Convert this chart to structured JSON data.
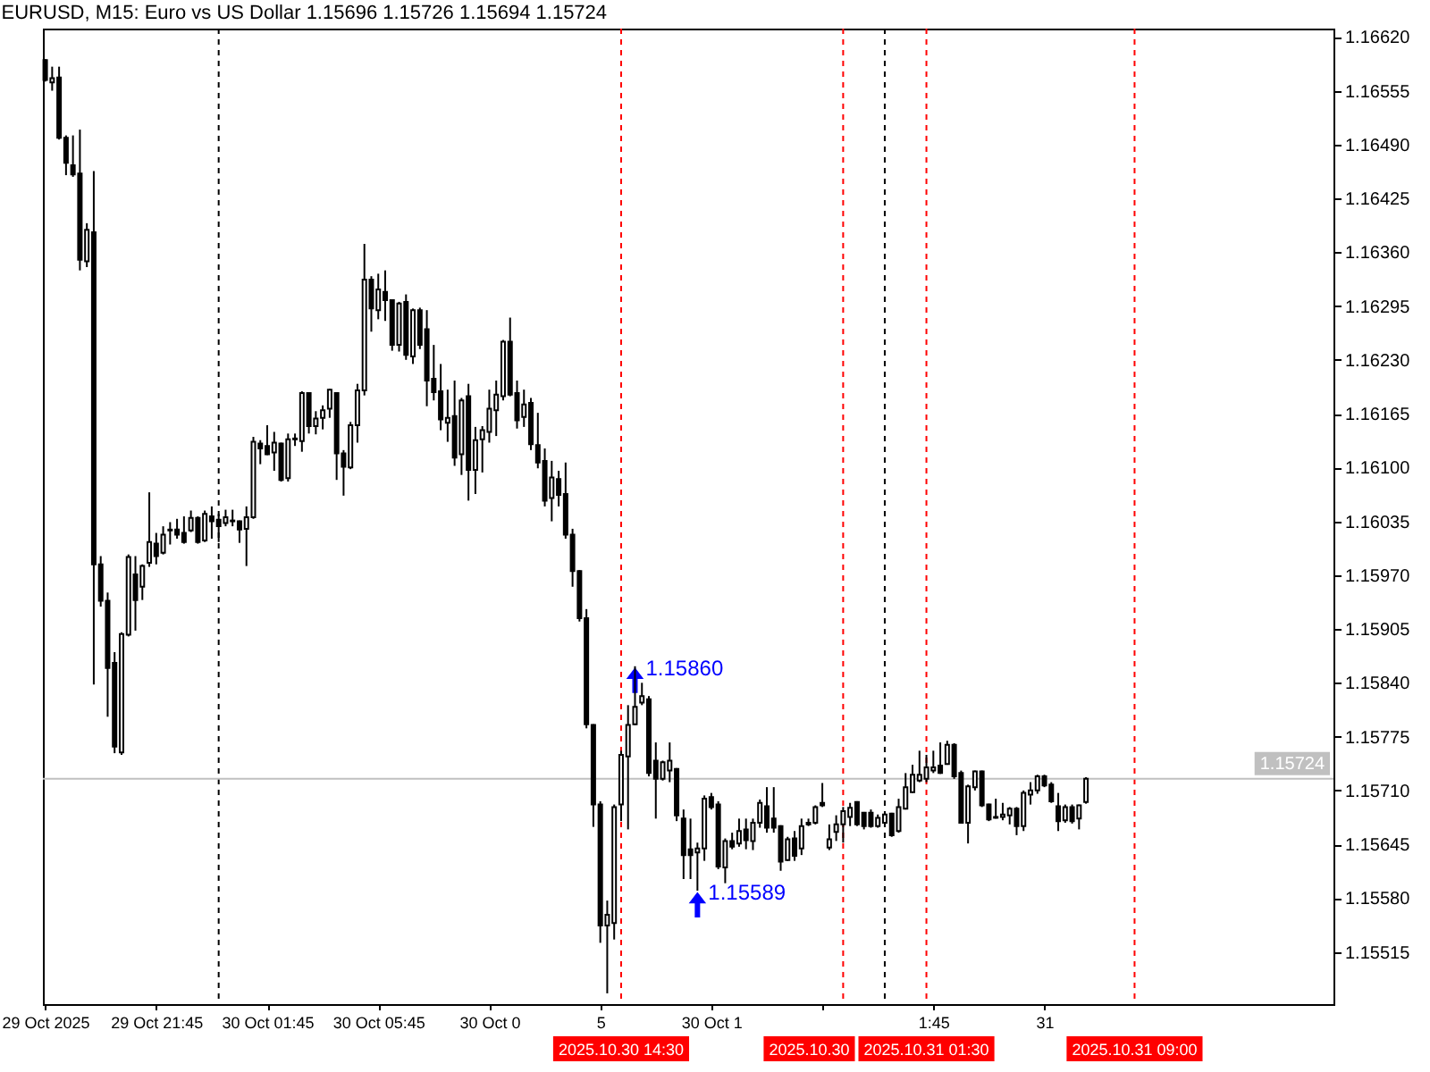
{
  "chart_data": {
    "type": "candlestick",
    "title": "EURUSD, M15:  Euro vs US Dollar  1.15696 1.15726 1.15694 1.15724",
    "color": "#000000",
    "x": [
      "2025-10-29T17:45",
      "2025-10-29T18:00",
      "2025-10-29T18:15",
      "2025-10-29T18:30",
      "2025-10-29T18:45",
      "2025-10-29T19:00",
      "2025-10-29T19:15",
      "2025-10-29T19:30",
      "2025-10-29T19:45",
      "2025-10-29T20:00",
      "2025-10-29T20:15",
      "2025-10-29T20:30",
      "2025-10-29T20:45",
      "2025-10-29T21:00",
      "2025-10-29T21:15",
      "2025-10-29T21:30",
      "2025-10-29T21:45",
      "2025-10-29T22:00",
      "2025-10-29T22:15",
      "2025-10-29T22:30",
      "2025-10-29T22:45",
      "2025-10-29T23:00",
      "2025-10-29T23:15",
      "2025-10-29T23:30",
      "2025-10-29T23:45",
      "2025-10-30T00:00",
      "2025-10-30T00:15",
      "2025-10-30T00:30",
      "2025-10-30T00:45",
      "2025-10-30T01:00",
      "2025-10-30T01:15",
      "2025-10-30T01:30",
      "2025-10-30T01:45",
      "2025-10-30T02:00",
      "2025-10-30T02:15",
      "2025-10-30T02:30",
      "2025-10-30T02:45",
      "2025-10-30T03:00",
      "2025-10-30T03:15",
      "2025-10-30T03:30",
      "2025-10-30T03:45",
      "2025-10-30T04:00",
      "2025-10-30T04:15",
      "2025-10-30T04:30",
      "2025-10-30T04:45",
      "2025-10-30T05:00",
      "2025-10-30T05:15",
      "2025-10-30T05:30",
      "2025-10-30T05:45",
      "2025-10-30T06:00",
      "2025-10-30T06:15",
      "2025-10-30T06:30",
      "2025-10-30T06:45",
      "2025-10-30T07:00",
      "2025-10-30T07:15",
      "2025-10-30T07:30",
      "2025-10-30T07:45",
      "2025-10-30T08:00",
      "2025-10-30T08:15",
      "2025-10-30T08:30",
      "2025-10-30T08:45",
      "2025-10-30T09:00",
      "2025-10-30T09:15",
      "2025-10-30T09:30",
      "2025-10-30T09:45",
      "2025-10-30T10:00",
      "2025-10-30T10:15",
      "2025-10-30T10:30",
      "2025-10-30T10:45",
      "2025-10-30T11:00",
      "2025-10-30T11:15",
      "2025-10-30T11:30",
      "2025-10-30T11:45",
      "2025-10-30T12:00",
      "2025-10-30T12:15",
      "2025-10-30T12:30",
      "2025-10-30T12:45",
      "2025-10-30T13:00",
      "2025-10-30T13:15",
      "2025-10-30T13:30",
      "2025-10-30T13:45",
      "2025-10-30T14:00",
      "2025-10-30T14:15",
      "2025-10-30T14:30",
      "2025-10-30T14:45",
      "2025-10-30T15:00",
      "2025-10-30T15:15",
      "2025-10-30T15:30",
      "2025-10-30T15:45",
      "2025-10-30T16:00",
      "2025-10-30T16:15",
      "2025-10-30T16:30",
      "2025-10-30T16:45",
      "2025-10-30T17:00",
      "2025-10-30T17:15",
      "2025-10-30T17:30",
      "2025-10-30T17:45",
      "2025-10-30T18:00",
      "2025-10-30T18:15",
      "2025-10-30T18:30",
      "2025-10-30T18:45",
      "2025-10-30T19:00",
      "2025-10-30T19:15",
      "2025-10-30T19:30",
      "2025-10-30T19:45",
      "2025-10-30T20:00",
      "2025-10-30T20:15",
      "2025-10-30T20:30",
      "2025-10-30T20:45",
      "2025-10-30T21:00",
      "2025-10-30T21:15",
      "2025-10-30T21:30",
      "2025-10-30T21:45",
      "2025-10-30T22:00",
      "2025-10-30T22:15",
      "2025-10-30T22:30",
      "2025-10-30T22:45",
      "2025-10-30T23:00",
      "2025-10-30T23:15",
      "2025-10-30T23:30",
      "2025-10-30T23:45",
      "2025-10-31T00:00",
      "2025-10-31T00:15",
      "2025-10-31T00:30",
      "2025-10-31T00:45",
      "2025-10-31T01:00",
      "2025-10-31T01:15",
      "2025-10-31T01:30",
      "2025-10-31T01:45",
      "2025-10-31T02:00",
      "2025-10-31T02:15",
      "2025-10-31T02:30",
      "2025-10-31T02:45",
      "2025-10-31T03:00",
      "2025-10-31T03:15",
      "2025-10-31T03:30",
      "2025-10-31T03:45",
      "2025-10-31T04:00",
      "2025-10-31T04:15",
      "2025-10-31T04:30",
      "2025-10-31T04:45",
      "2025-10-31T05:00",
      "2025-10-31T05:15",
      "2025-10-31T05:30",
      "2025-10-31T05:45",
      "2025-10-31T06:00",
      "2025-10-31T06:15",
      "2025-10-31T06:30",
      "2025-10-31T06:45",
      "2025-10-31T07:00",
      "2025-10-31T07:15"
    ],
    "ohlc": [
      [
        1.16592,
        1.16593,
        1.16566,
        1.16568
      ],
      [
        1.16565,
        1.16584,
        1.16555,
        1.1657
      ],
      [
        1.16571,
        1.16584,
        1.16496,
        1.16498
      ],
      [
        1.16498,
        1.16501,
        1.16453,
        1.16468
      ],
      [
        1.16465,
        1.16501,
        1.16451,
        1.16454
      ],
      [
        1.16455,
        1.16508,
        1.16338,
        1.16351
      ],
      [
        1.16349,
        1.16395,
        1.16342,
        1.16387
      ],
      [
        1.16384,
        1.16458,
        1.15838,
        1.15983
      ],
      [
        1.15983,
        1.15993,
        1.15932,
        1.15939
      ],
      [
        1.15939,
        1.15949,
        1.15799,
        1.15858
      ],
      [
        1.15864,
        1.15877,
        1.15755,
        1.15763
      ],
      [
        1.15756,
        1.15901,
        1.15753,
        1.15899
      ],
      [
        1.15898,
        1.15995,
        1.15896,
        1.15992
      ],
      [
        1.15971,
        1.15993,
        1.15903,
        1.1594
      ],
      [
        1.15956,
        1.15983,
        1.1594,
        1.15981
      ],
      [
        1.15985,
        1.1607,
        1.1598,
        1.1601
      ],
      [
        1.16008,
        1.16021,
        1.15983,
        1.15993
      ],
      [
        1.15997,
        1.16029,
        1.15995,
        1.16019
      ],
      [
        1.16025,
        1.16034,
        1.16007,
        1.16024
      ],
      [
        1.16025,
        1.16038,
        1.16014,
        1.16019
      ],
      [
        1.16021,
        1.16041,
        1.16008,
        1.1601
      ],
      [
        1.16024,
        1.16048,
        1.16022,
        1.16039
      ],
      [
        1.16039,
        1.16041,
        1.16008,
        1.1601
      ],
      [
        1.16012,
        1.16048,
        1.1601,
        1.16044
      ],
      [
        1.16041,
        1.16053,
        1.16014,
        1.16035
      ],
      [
        1.16037,
        1.16044,
        1.1601,
        1.16029
      ],
      [
        1.16033,
        1.16049,
        1.16029,
        1.1604
      ],
      [
        1.16036,
        1.16049,
        1.16029,
        1.16035
      ],
      [
        1.16035,
        1.16036,
        1.16009,
        1.16025
      ],
      [
        1.16026,
        1.16053,
        1.15981,
        1.1604
      ],
      [
        1.1604,
        1.16137,
        1.16038,
        1.16131
      ],
      [
        1.16129,
        1.16133,
        1.16104,
        1.16123
      ],
      [
        1.16126,
        1.16151,
        1.16115,
        1.16116
      ],
      [
        1.16118,
        1.16143,
        1.16096,
        1.1613
      ],
      [
        1.16129,
        1.1613,
        1.16083,
        1.16085
      ],
      [
        1.16087,
        1.16141,
        1.16083,
        1.16134
      ],
      [
        1.16135,
        1.16141,
        1.16126,
        1.16134
      ],
      [
        1.16132,
        1.16192,
        1.16119,
        1.1619
      ],
      [
        1.1619,
        1.16191,
        1.16141,
        1.1615
      ],
      [
        1.1615,
        1.16168,
        1.1614,
        1.16159
      ],
      [
        1.1616,
        1.16175,
        1.16146,
        1.16169
      ],
      [
        1.16171,
        1.16195,
        1.1616,
        1.16194
      ],
      [
        1.1619,
        1.16191,
        1.16085,
        1.16117
      ],
      [
        1.16117,
        1.16121,
        1.16066,
        1.16101
      ],
      [
        1.161,
        1.16155,
        1.16098,
        1.16151
      ],
      [
        1.16151,
        1.16201,
        1.1613,
        1.16193
      ],
      [
        1.16193,
        1.1637,
        1.16187,
        1.16327
      ],
      [
        1.16327,
        1.16331,
        1.16264,
        1.16292
      ],
      [
        1.1629,
        1.16334,
        1.16279,
        1.16315
      ],
      [
        1.16312,
        1.16338,
        1.16277,
        1.16302
      ],
      [
        1.16302,
        1.16303,
        1.16241,
        1.16248
      ],
      [
        1.16248,
        1.163,
        1.1624,
        1.16298
      ],
      [
        1.163,
        1.16309,
        1.1623,
        1.16236
      ],
      [
        1.16234,
        1.16292,
        1.16225,
        1.1629
      ],
      [
        1.1629,
        1.16293,
        1.16243,
        1.16248
      ],
      [
        1.16267,
        1.1629,
        1.16174,
        1.16205
      ],
      [
        1.16207,
        1.16248,
        1.16181,
        1.16191
      ],
      [
        1.16192,
        1.16225,
        1.16145,
        1.16158
      ],
      [
        1.16154,
        1.16194,
        1.16131,
        1.1616
      ],
      [
        1.16162,
        1.16205,
        1.16102,
        1.16112
      ],
      [
        1.16116,
        1.16184,
        1.16091,
        1.16181
      ],
      [
        1.16186,
        1.16201,
        1.1606,
        1.16097
      ],
      [
        1.16097,
        1.16149,
        1.16068,
        1.16133
      ],
      [
        1.16134,
        1.1615,
        1.16094,
        1.16145
      ],
      [
        1.16143,
        1.16194,
        1.1613,
        1.16171
      ],
      [
        1.16169,
        1.16205,
        1.16138,
        1.16188
      ],
      [
        1.16186,
        1.16254,
        1.16181,
        1.16252
      ],
      [
        1.16252,
        1.16281,
        1.16186,
        1.16188
      ],
      [
        1.1619,
        1.16205,
        1.16147,
        1.16157
      ],
      [
        1.16161,
        1.16194,
        1.16149,
        1.16176
      ],
      [
        1.16178,
        1.16184,
        1.16121,
        1.16128
      ],
      [
        1.16127,
        1.16166,
        1.16099,
        1.16106
      ],
      [
        1.16108,
        1.16123,
        1.16053,
        1.1606
      ],
      [
        1.16063,
        1.16108,
        1.16035,
        1.16088
      ],
      [
        1.16086,
        1.16096,
        1.16053,
        1.16067
      ],
      [
        1.16068,
        1.16106,
        1.16014,
        1.16019
      ],
      [
        1.16019,
        1.16026,
        1.15956,
        1.15975
      ],
      [
        1.15975,
        1.15976,
        1.15914,
        1.15918
      ],
      [
        1.15918,
        1.15929,
        1.15785,
        1.1579
      ],
      [
        1.15789,
        1.1579,
        1.15666,
        1.15693
      ],
      [
        1.15693,
        1.15697,
        1.15526,
        1.15547
      ],
      [
        1.15547,
        1.15577,
        1.15465,
        1.1556
      ],
      [
        1.1555,
        1.15693,
        1.1553,
        1.1569
      ],
      [
        1.15693,
        1.15758,
        1.15673,
        1.15753
      ],
      [
        1.15751,
        1.15813,
        1.15663,
        1.15789
      ],
      [
        1.1579,
        1.1586,
        1.15789,
        1.15811
      ],
      [
        1.15816,
        1.1584,
        1.15813,
        1.15824
      ],
      [
        1.1582,
        1.15824,
        1.15727,
        1.15731
      ],
      [
        1.15746,
        1.15768,
        1.15676,
        1.15724
      ],
      [
        1.15724,
        1.15746,
        1.15722,
        1.15744
      ],
      [
        1.15734,
        1.15768,
        1.1572,
        1.15746
      ],
      [
        1.15736,
        1.15737,
        1.15673,
        1.1568
      ],
      [
        1.15676,
        1.15687,
        1.15603,
        1.15632
      ],
      [
        1.15639,
        1.15676,
        1.15603,
        1.15632
      ],
      [
        1.15635,
        1.15647,
        1.15589,
        1.1564
      ],
      [
        1.1564,
        1.15704,
        1.15625,
        1.157
      ],
      [
        1.15702,
        1.15707,
        1.15687,
        1.1569
      ],
      [
        1.15693,
        1.15697,
        1.15615,
        1.15618
      ],
      [
        1.15617,
        1.15652,
        1.15598,
        1.15649
      ],
      [
        1.15649,
        1.15659,
        1.15639,
        1.15642
      ],
      [
        1.15646,
        1.15676,
        1.15642,
        1.15661
      ],
      [
        1.15663,
        1.15676,
        1.15639,
        1.1565
      ],
      [
        1.15649,
        1.15676,
        1.15638,
        1.15671
      ],
      [
        1.15671,
        1.15699,
        1.15665,
        1.15695
      ],
      [
        1.15691,
        1.15714,
        1.15659,
        1.15665
      ],
      [
        1.15676,
        1.15714,
        1.15659,
        1.15665
      ],
      [
        1.15667,
        1.15668,
        1.15613,
        1.15624
      ],
      [
        1.15626,
        1.15654,
        1.15625,
        1.15651
      ],
      [
        1.15652,
        1.15661,
        1.15625,
        1.15631
      ],
      [
        1.1564,
        1.15676,
        1.15632,
        1.15667
      ],
      [
        1.15669,
        1.15676,
        1.15667,
        1.15671
      ],
      [
        1.15671,
        1.15692,
        1.15669,
        1.1569
      ],
      [
        1.15695,
        1.15719,
        1.1569,
        1.15692
      ],
      [
        1.15641,
        1.15669,
        1.15638,
        1.15651
      ],
      [
        1.1566,
        1.1568,
        1.15649,
        1.15669
      ],
      [
        1.15669,
        1.1569,
        1.15647,
        1.15685
      ],
      [
        1.15678,
        1.15695,
        1.15667,
        1.15689
      ],
      [
        1.15696,
        1.15697,
        1.15667,
        1.15669
      ],
      [
        1.15683,
        1.15684,
        1.15663,
        1.15667
      ],
      [
        1.15683,
        1.15687,
        1.15665,
        1.15667
      ],
      [
        1.15667,
        1.15681,
        1.15665,
        1.15677
      ],
      [
        1.15671,
        1.15683,
        1.15669,
        1.15681
      ],
      [
        1.15682,
        1.15683,
        1.15654,
        1.15656
      ],
      [
        1.15661,
        1.157,
        1.15659,
        1.1569
      ],
      [
        1.15688,
        1.15731,
        1.15687,
        1.15714
      ],
      [
        1.15708,
        1.15741,
        1.15707,
        1.15729
      ],
      [
        1.15722,
        1.15758,
        1.1572,
        1.15729
      ],
      [
        1.15724,
        1.15753,
        1.1572,
        1.15738
      ],
      [
        1.15734,
        1.15758,
        1.15731,
        1.15738
      ],
      [
        1.1574,
        1.15768,
        1.1573,
        1.15731
      ],
      [
        1.15742,
        1.1577,
        1.15741,
        1.15765
      ],
      [
        1.15765,
        1.15767,
        1.15724,
        1.15727
      ],
      [
        1.15731,
        1.15734,
        1.1567,
        1.15671
      ],
      [
        1.15671,
        1.15717,
        1.15646,
        1.15715
      ],
      [
        1.15714,
        1.15734,
        1.1571,
        1.15733
      ],
      [
        1.15733,
        1.15734,
        1.1569,
        1.15692
      ],
      [
        1.15693,
        1.15694,
        1.15673,
        1.15675
      ],
      [
        1.15678,
        1.157,
        1.15676,
        1.15677
      ],
      [
        1.15678,
        1.15695,
        1.15674,
        1.15681
      ],
      [
        1.1568,
        1.1569,
        1.15669,
        1.15688
      ],
      [
        1.15688,
        1.1569,
        1.15656,
        1.15667
      ],
      [
        1.15667,
        1.1571,
        1.15661,
        1.15707
      ],
      [
        1.15705,
        1.1572,
        1.15693,
        1.1571
      ],
      [
        1.1571,
        1.15729,
        1.15706,
        1.15727
      ],
      [
        1.15727,
        1.15729,
        1.15714,
        1.15716
      ],
      [
        1.15717,
        1.1572,
        1.15695,
        1.15697
      ],
      [
        1.15691,
        1.15707,
        1.15661,
        1.15673
      ],
      [
        1.15674,
        1.15693,
        1.15671,
        1.1569
      ],
      [
        1.1569,
        1.15693,
        1.1567,
        1.15673
      ],
      [
        1.15676,
        1.15693,
        1.15663,
        1.15692
      ],
      [
        1.15696,
        1.15726,
        1.15694,
        1.15724
      ]
    ],
    "colors": [
      "#000000",
      "#ffffff",
      "#000000",
      "#000000",
      "#000000",
      "#000000",
      "#ffffff",
      "#000000",
      "#000000",
      "#000000",
      "#000000",
      "#ffffff",
      "#ffffff",
      "#000000",
      "#ffffff",
      "#ffffff",
      "#000000",
      "#ffffff",
      "#000000",
      "#000000",
      "#000000",
      "#ffffff",
      "#000000",
      "#ffffff",
      "#000000",
      "#000000",
      "#ffffff",
      "#000000",
      "#000000",
      "#ffffff",
      "#ffffff",
      "#000000",
      "#000000",
      "#ffffff",
      "#000000",
      "#ffffff",
      "#000000",
      "#ffffff",
      "#000000",
      "#ffffff",
      "#ffffff",
      "#ffffff",
      "#000000",
      "#000000",
      "#ffffff",
      "#ffffff",
      "#ffffff",
      "#000000",
      "#ffffff",
      "#000000",
      "#000000",
      "#ffffff",
      "#000000",
      "#ffffff",
      "#000000",
      "#000000",
      "#000000",
      "#000000",
      "#ffffff",
      "#000000",
      "#ffffff",
      "#000000",
      "#ffffff",
      "#ffffff",
      "#ffffff",
      "#ffffff",
      "#ffffff",
      "#000000",
      "#000000",
      "#ffffff",
      "#000000",
      "#000000",
      "#000000",
      "#ffffff",
      "#000000",
      "#000000",
      "#000000",
      "#000000",
      "#000000",
      "#000000",
      "#000000",
      "#ffffff",
      "#ffffff",
      "#ffffff",
      "#ffffff",
      "#ffffff",
      "#ffffff",
      "#000000",
      "#000000",
      "#ffffff",
      "#ffffff",
      "#000000",
      "#000000",
      "#000000",
      "#ffffff",
      "#ffffff",
      "#000000",
      "#000000",
      "#ffffff",
      "#000000",
      "#ffffff",
      "#000000",
      "#ffffff",
      "#ffffff",
      "#000000",
      "#000000",
      "#000000",
      "#ffffff",
      "#000000",
      "#ffffff",
      "#ffffff",
      "#ffffff",
      "#000000",
      "#ffffff",
      "#ffffff",
      "#ffffff",
      "#ffffff",
      "#000000",
      "#000000",
      "#000000",
      "#ffffff",
      "#ffffff",
      "#000000",
      "#ffffff",
      "#ffffff",
      "#ffffff",
      "#ffffff",
      "#ffffff",
      "#ffffff",
      "#000000",
      "#ffffff",
      "#000000",
      "#000000",
      "#ffffff",
      "#ffffff",
      "#000000",
      "#000000",
      "#000000",
      "#ffffff",
      "#ffffff",
      "#000000",
      "#ffffff",
      "#ffffff",
      "#ffffff",
      "#000000",
      "#000000",
      "#000000",
      "#ffffff",
      "#000000",
      "#ffffff",
      "#ffffff"
    ],
    "xlim": [
      "2025-10-29T17:40",
      "2025-10-31T16:10"
    ],
    "xticks": [
      {
        "value": "2025-10-29T17:45",
        "label": "29 Oct 2025"
      },
      {
        "value": "2025-10-29T21:45",
        "label": "29 Oct 21:45"
      },
      {
        "value": "2025-10-30T01:45",
        "label": "30 Oct 01:45"
      },
      {
        "value": "2025-10-30T05:45",
        "label": "30 Oct 05:45"
      },
      {
        "value": "2025-10-30T09:45",
        "label": "30 Oct 0"
      },
      {
        "value": "2025-10-30T13:45",
        "label": "5"
      },
      {
        "value": "2025-10-30T17:45",
        "label": "30 Oct 1"
      },
      {
        "value": "2025-10-30T21:45",
        "label": null
      },
      {
        "value": "2025-10-31T01:45",
        "label": "1:45"
      },
      {
        "value": "2025-10-31T05:45",
        "label": "31"
      }
    ],
    "ylim": [
      1.15452,
      1.1663
    ],
    "yticks": [
      {
        "value": 1.1662,
        "label": "1.16620"
      },
      1.16555,
      {
        "value": 1.1649,
        "label": "1.16490"
      },
      1.16425,
      {
        "value": 1.1636,
        "label": "1.16360"
      },
      1.16295,
      {
        "value": 1.1623,
        "label": "1.16230"
      },
      1.16165,
      {
        "value": 1.161,
        "label": "1.16100"
      },
      1.16035,
      {
        "value": 1.1597,
        "label": "1.15970"
      },
      1.15905,
      {
        "value": 1.1584,
        "label": "1.15840"
      },
      1.15775,
      {
        "value": 1.1571,
        "label": "1.15710"
      },
      1.15645,
      {
        "value": 1.1558,
        "label": "1.15580"
      },
      1.15515
    ],
    "ref_lines": [
      {
        "axis": "x",
        "value": "2025-10-30T00:00",
        "color": "#000000",
        "line_style": "dashed"
      },
      {
        "axis": "x",
        "value": "2025-10-31T00:00",
        "color": "#000000",
        "line_style": "dashed"
      },
      {
        "axis": "x",
        "value": "2025-10-30T14:30",
        "label": "2025.10.30 14:30",
        "color": "#ff0000",
        "line_style": "dashed"
      },
      {
        "axis": "x",
        "value": "2025-10-30T22:30",
        "label": "2025.10.30",
        "color": "#ff0000",
        "line_style": "dashed"
      },
      {
        "axis": "x",
        "value": "2025-10-31T01:30",
        "label": "2025.10.31 01:30",
        "color": "#ff0000",
        "line_style": "dashed"
      },
      {
        "axis": "x",
        "value": "2025-10-31T09:00",
        "label": "2025.10.31 09:00",
        "color": "#ff0000",
        "line_style": "dashed"
      },
      {
        "axis": "y",
        "value": 1.15724,
        "label": "1.15724",
        "color": "#c0c0c0",
        "line_style": "solid"
      }
    ],
    "annotations": [
      {
        "text": "1.15860",
        "x": "2025-10-30T15:00",
        "y": 1.1586
      },
      {
        "text": "1.15589",
        "x": "2025-10-30T17:15",
        "y": 1.15589
      }
    ],
    "grid": false
  }
}
